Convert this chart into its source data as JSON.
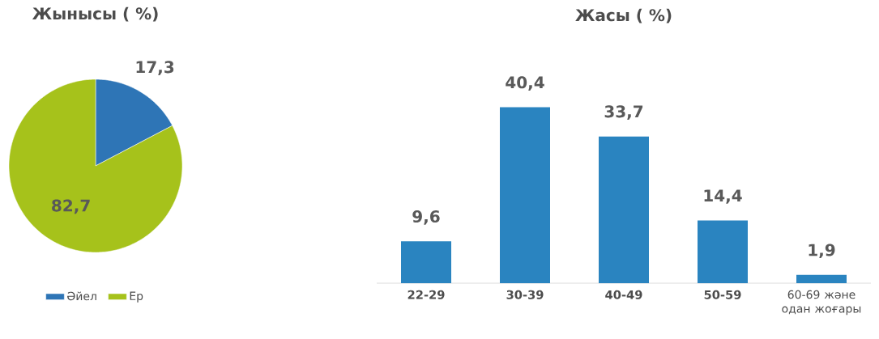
{
  "chart_data": [
    {
      "type": "pie",
      "title": "Жынысы ( %)",
      "categories": [
        "Әйел",
        "Ер"
      ],
      "values": [
        17.3,
        82.7
      ],
      "colors": [
        "#2e75b6",
        "#a6c21b"
      ],
      "value_labels": [
        "17,3",
        "82,7"
      ],
      "legend": "bottom"
    },
    {
      "type": "bar",
      "title": "Жасы ( %)",
      "categories": [
        "22-29",
        "30-39",
        "40-49",
        "50-59",
        "60-69 және одан жоғары"
      ],
      "values": [
        9.6,
        40.4,
        33.7,
        14.4,
        1.9
      ],
      "color": "#2a84c0",
      "value_labels": [
        "9,6",
        "40,4",
        "33,7",
        "14,4",
        "1,9"
      ]
    }
  ]
}
